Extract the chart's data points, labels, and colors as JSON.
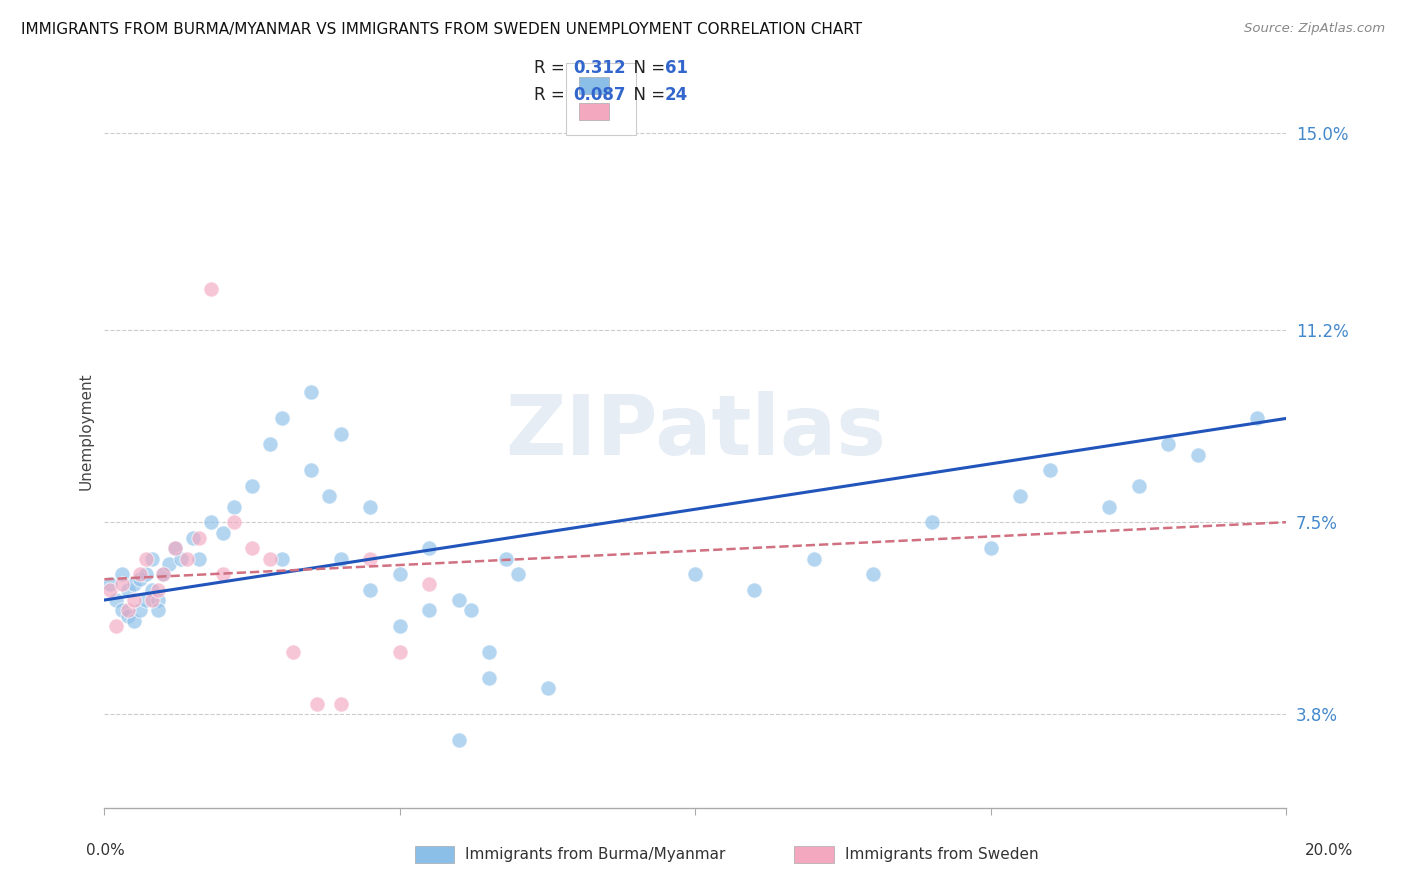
{
  "title": "IMMIGRANTS FROM BURMA/MYANMAR VS IMMIGRANTS FROM SWEDEN UNEMPLOYMENT CORRELATION CHART",
  "source": "Source: ZipAtlas.com",
  "ylabel": "Unemployment",
  "ytick_labels": [
    "15.0%",
    "11.2%",
    "7.5%",
    "3.8%"
  ],
  "ytick_values": [
    0.15,
    0.112,
    0.075,
    0.038
  ],
  "xlim": [
    0.0,
    0.2
  ],
  "ylim": [
    0.02,
    0.165
  ],
  "legend_label1": "Immigrants from Burma/Myanmar",
  "legend_label2": "Immigrants from Sweden",
  "watermark": "ZIPatlas",
  "color_burma": "#8bbfe8",
  "color_sweden": "#f4a8c0",
  "trendline_burma_color": "#2255bb",
  "trendline_sweden_color": "#d07080",
  "burma_x": [
    0.001,
    0.002,
    0.003,
    0.003,
    0.004,
    0.004,
    0.005,
    0.005,
    0.006,
    0.006,
    0.007,
    0.007,
    0.008,
    0.008,
    0.009,
    0.009,
    0.01,
    0.011,
    0.012,
    0.013,
    0.015,
    0.016,
    0.018,
    0.02,
    0.022,
    0.025,
    0.028,
    0.03,
    0.035,
    0.038,
    0.04,
    0.045,
    0.05,
    0.055,
    0.06,
    0.062,
    0.065,
    0.068,
    0.07,
    0.075,
    0.03,
    0.035,
    0.04,
    0.045,
    0.05,
    0.055,
    0.06,
    0.065,
    0.1,
    0.11,
    0.12,
    0.13,
    0.14,
    0.15,
    0.155,
    0.16,
    0.17,
    0.175,
    0.18,
    0.185,
    0.195
  ],
  "burma_y": [
    0.063,
    0.06,
    0.065,
    0.058,
    0.062,
    0.057,
    0.063,
    0.056,
    0.064,
    0.058,
    0.06,
    0.065,
    0.068,
    0.062,
    0.06,
    0.058,
    0.065,
    0.067,
    0.07,
    0.068,
    0.072,
    0.068,
    0.075,
    0.073,
    0.078,
    0.082,
    0.09,
    0.068,
    0.085,
    0.08,
    0.068,
    0.078,
    0.065,
    0.07,
    0.06,
    0.058,
    0.05,
    0.068,
    0.065,
    0.043,
    0.095,
    0.1,
    0.092,
    0.062,
    0.055,
    0.058,
    0.033,
    0.045,
    0.065,
    0.062,
    0.068,
    0.065,
    0.075,
    0.07,
    0.08,
    0.085,
    0.078,
    0.082,
    0.09,
    0.088,
    0.095
  ],
  "sweden_x": [
    0.001,
    0.002,
    0.003,
    0.004,
    0.005,
    0.006,
    0.007,
    0.008,
    0.009,
    0.01,
    0.012,
    0.014,
    0.016,
    0.018,
    0.02,
    0.022,
    0.025,
    0.028,
    0.032,
    0.036,
    0.04,
    0.045,
    0.05,
    0.055
  ],
  "sweden_y": [
    0.062,
    0.055,
    0.063,
    0.058,
    0.06,
    0.065,
    0.068,
    0.06,
    0.062,
    0.065,
    0.07,
    0.068,
    0.072,
    0.12,
    0.065,
    0.075,
    0.07,
    0.068,
    0.05,
    0.04,
    0.04,
    0.068,
    0.05,
    0.063
  ]
}
